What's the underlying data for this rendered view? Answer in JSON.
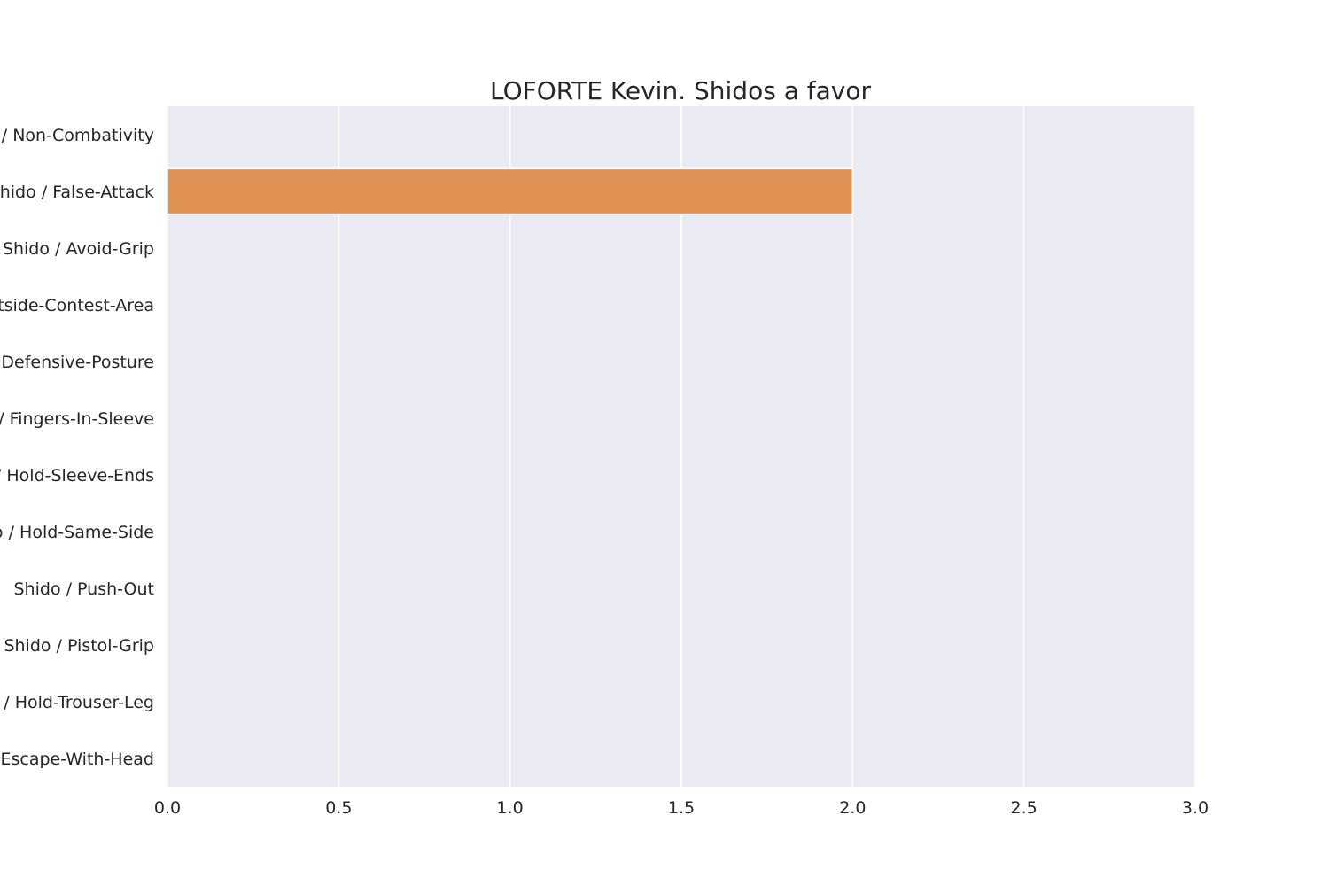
{
  "chart_data": {
    "type": "bar",
    "orientation": "horizontal",
    "title": "LOFORTE Kevin. Shidos a favor",
    "xlabel": "",
    "ylabel": "",
    "xlim": [
      0,
      3
    ],
    "x_ticks": [
      "0.0",
      "0.5",
      "1.0",
      "1.5",
      "2.0",
      "2.5",
      "3.0"
    ],
    "categories": [
      "Shido / Non-Combativity",
      "Shido / False-Attack",
      "Shido / Avoid-Grip",
      "Shido / Outside-Contest-Area",
      "Shido / Defensive-Posture",
      "Shido / Fingers-In-Sleeve",
      "Shido / Hold-Sleeve-Ends",
      "Shido / Hold-Same-Side",
      "Shido / Push-Out",
      "Shido / Pistol-Grip",
      "Shido / Hold-Trouser-Leg",
      "Shido / Escape-With-Head"
    ],
    "values": [
      0,
      2,
      0,
      0,
      0,
      0,
      0,
      0,
      0,
      0,
      0,
      0
    ],
    "grid": true,
    "colors": {
      "background": "#eaeaf2",
      "grid": "#ffffff",
      "bar": "#e09254",
      "text": "#262626"
    }
  }
}
